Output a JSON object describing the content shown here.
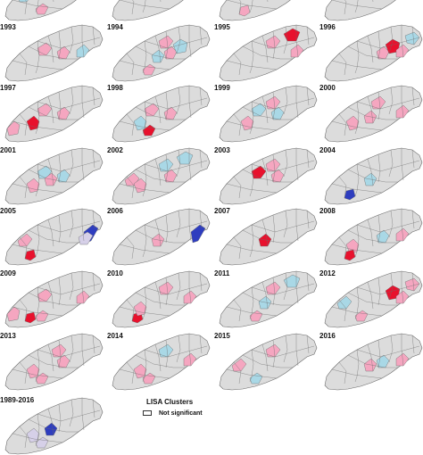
{
  "colors": {
    "not_significant": "#dcdcdc",
    "outline": "#6a6a6a",
    "high_high": "#e8112d",
    "low_low": "#2e3dbf",
    "low_high": "#a9d8e6",
    "high_low": "#f5a6c0",
    "light_purple": "#d6d0e8"
  },
  "panels": [
    {
      "year": "",
      "regions": [
        {
          "shape": 3,
          "class": "low_high"
        },
        {
          "shape": 5,
          "class": "high_low"
        }
      ]
    },
    {
      "year": "",
      "regions": [
        {
          "shape": 6,
          "class": "high_high"
        }
      ]
    },
    {
      "year": "",
      "regions": [
        {
          "shape": 2,
          "class": "high_low"
        }
      ]
    },
    {
      "year": "",
      "regions": []
    },
    {
      "year": "1993",
      "regions": [
        {
          "shape": 6,
          "class": "high_low"
        },
        {
          "shape": 9,
          "class": "high_low"
        },
        {
          "shape": 12,
          "class": "low_high"
        }
      ]
    },
    {
      "year": "1994",
      "regions": [
        {
          "shape": 5,
          "class": "high_low"
        },
        {
          "shape": 7,
          "class": "low_high"
        },
        {
          "shape": 8,
          "class": "high_low"
        },
        {
          "shape": 9,
          "class": "high_low"
        },
        {
          "shape": 10,
          "class": "low_high"
        }
      ]
    },
    {
      "year": "1995",
      "regions": [
        {
          "shape": 11,
          "class": "high_high"
        },
        {
          "shape": 8,
          "class": "high_low"
        },
        {
          "shape": 12,
          "class": "high_low"
        }
      ]
    },
    {
      "year": "1996",
      "regions": [
        {
          "shape": 9,
          "class": "high_low"
        },
        {
          "shape": 10,
          "class": "high_high"
        },
        {
          "shape": 13,
          "class": "low_high"
        },
        {
          "shape": 12,
          "class": "high_low"
        }
      ]
    },
    {
      "year": "1997",
      "regions": [
        {
          "shape": 4,
          "class": "high_high"
        },
        {
          "shape": 1,
          "class": "high_low"
        },
        {
          "shape": 9,
          "class": "high_low"
        },
        {
          "shape": 6,
          "class": "high_low"
        }
      ]
    },
    {
      "year": "1998",
      "regions": [
        {
          "shape": 4,
          "class": "low_high"
        },
        {
          "shape": 5,
          "class": "high_high"
        },
        {
          "shape": 6,
          "class": "high_low"
        },
        {
          "shape": 9,
          "class": "high_low"
        }
      ]
    },
    {
      "year": "1999",
      "regions": [
        {
          "shape": 4,
          "class": "high_low"
        },
        {
          "shape": 6,
          "class": "low_high"
        },
        {
          "shape": 8,
          "class": "high_low"
        },
        {
          "shape": 9,
          "class": "low_high"
        }
      ]
    },
    {
      "year": "2000",
      "regions": [
        {
          "shape": 4,
          "class": "high_low"
        },
        {
          "shape": 7,
          "class": "high_low"
        },
        {
          "shape": 8,
          "class": "high_low"
        },
        {
          "shape": 12,
          "class": "high_low"
        }
      ]
    },
    {
      "year": "2001",
      "regions": [
        {
          "shape": 4,
          "class": "high_low"
        },
        {
          "shape": 6,
          "class": "low_high"
        },
        {
          "shape": 7,
          "class": "high_low"
        },
        {
          "shape": 9,
          "class": "low_high"
        }
      ]
    },
    {
      "year": "2002",
      "regions": [
        {
          "shape": 3,
          "class": "high_low"
        },
        {
          "shape": 4,
          "class": "high_low"
        },
        {
          "shape": 8,
          "class": "low_high"
        },
        {
          "shape": 9,
          "class": "high_low"
        },
        {
          "shape": 11,
          "class": "low_high"
        }
      ]
    },
    {
      "year": "2003",
      "regions": [
        {
          "shape": 6,
          "class": "high_high"
        },
        {
          "shape": 9,
          "class": "high_low"
        },
        {
          "shape": 8,
          "class": "high_low"
        }
      ]
    },
    {
      "year": "2004",
      "regions": [
        {
          "shape": 7,
          "class": "low_high"
        },
        {
          "shape": 2,
          "class": "low_low"
        }
      ]
    },
    {
      "year": "2005",
      "regions": [
        {
          "shape": 15,
          "class": "low_low"
        },
        {
          "shape": 2,
          "class": "high_high"
        },
        {
          "shape": 14,
          "class": "light_purple"
        },
        {
          "shape": 3,
          "class": "high_low"
        }
      ]
    },
    {
      "year": "2006",
      "regions": [
        {
          "shape": 15,
          "class": "low_low"
        },
        {
          "shape": 7,
          "class": "high_low"
        }
      ]
    },
    {
      "year": "2007",
      "regions": [
        {
          "shape": 7,
          "class": "high_high"
        }
      ]
    },
    {
      "year": "2008",
      "regions": [
        {
          "shape": 4,
          "class": "high_low"
        },
        {
          "shape": 9,
          "class": "low_high"
        },
        {
          "shape": 2,
          "class": "high_high"
        },
        {
          "shape": 12,
          "class": "high_low"
        }
      ]
    },
    {
      "year": "2009",
      "regions": [
        {
          "shape": 2,
          "class": "high_high"
        },
        {
          "shape": 1,
          "class": "high_low"
        },
        {
          "shape": 5,
          "class": "high_low"
        },
        {
          "shape": 6,
          "class": "high_low"
        },
        {
          "shape": 12,
          "class": "high_low"
        }
      ]
    },
    {
      "year": "2010",
      "regions": [
        {
          "shape": 2,
          "class": "high_high"
        },
        {
          "shape": 4,
          "class": "high_low"
        },
        {
          "shape": 8,
          "class": "high_low"
        },
        {
          "shape": 12,
          "class": "high_low"
        }
      ]
    },
    {
      "year": "2011",
      "regions": [
        {
          "shape": 5,
          "class": "high_low"
        },
        {
          "shape": 7,
          "class": "low_high"
        },
        {
          "shape": 8,
          "class": "high_low"
        },
        {
          "shape": 11,
          "class": "low_high"
        }
      ]
    },
    {
      "year": "2012",
      "regions": [
        {
          "shape": 10,
          "class": "high_high"
        },
        {
          "shape": 3,
          "class": "low_high"
        },
        {
          "shape": 5,
          "class": "high_low"
        },
        {
          "shape": 13,
          "class": "high_low"
        },
        {
          "shape": 12,
          "class": "high_low"
        }
      ]
    },
    {
      "year": "2013",
      "regions": [
        {
          "shape": 4,
          "class": "high_low"
        },
        {
          "shape": 5,
          "class": "high_low"
        },
        {
          "shape": 8,
          "class": "high_low"
        },
        {
          "shape": 9,
          "class": "high_low"
        }
      ]
    },
    {
      "year": "2014",
      "regions": [
        {
          "shape": 4,
          "class": "high_low"
        },
        {
          "shape": 5,
          "class": "high_low"
        },
        {
          "shape": 8,
          "class": "low_high"
        },
        {
          "shape": 12,
          "class": "high_low"
        }
      ]
    },
    {
      "year": "2015",
      "regions": [
        {
          "shape": 3,
          "class": "high_low"
        },
        {
          "shape": 5,
          "class": "low_high"
        },
        {
          "shape": 8,
          "class": "high_low"
        }
      ]
    },
    {
      "year": "2016",
      "regions": [
        {
          "shape": 7,
          "class": "high_low"
        },
        {
          "shape": 9,
          "class": "low_high"
        },
        {
          "shape": 12,
          "class": "high_low"
        }
      ]
    },
    {
      "year": "1989-2016",
      "regions": [
        {
          "shape": 7,
          "class": "low_low"
        },
        {
          "shape": 4,
          "class": "light_purple"
        },
        {
          "shape": 5,
          "class": "light_purple"
        }
      ]
    }
  ],
  "legend": {
    "title": "LISA Clusters",
    "items": [
      {
        "label": "Not significant",
        "class": "not_significant"
      }
    ]
  }
}
